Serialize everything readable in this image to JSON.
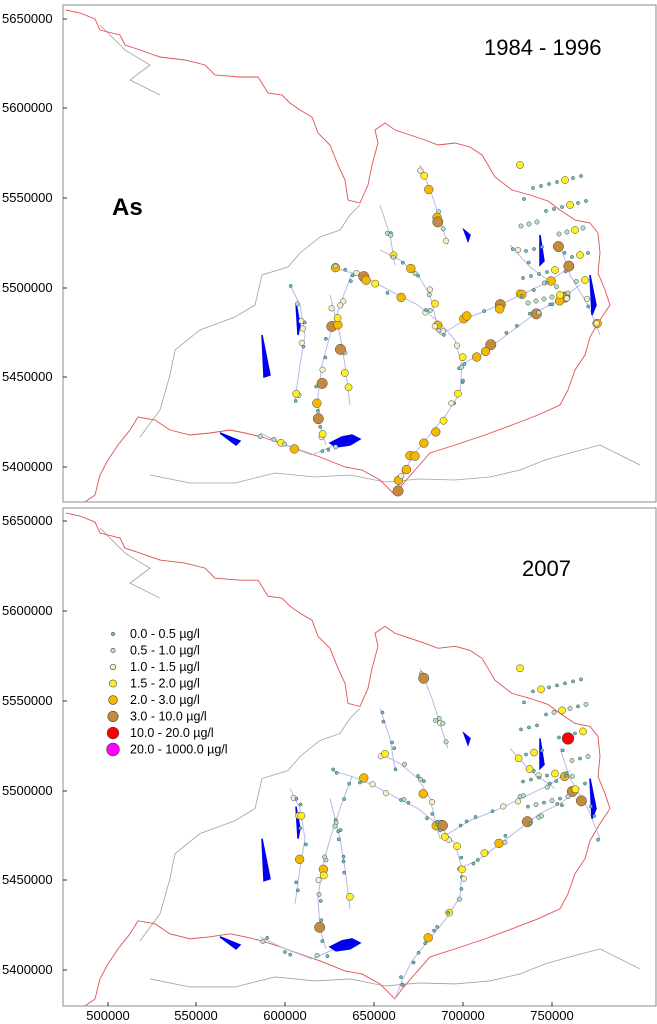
{
  "element_label": "As",
  "panels": [
    {
      "period": "1984 - 1996"
    },
    {
      "period": "2007"
    }
  ],
  "y_ticks": [
    "5650000",
    "5600000",
    "5550000",
    "5500000",
    "5450000",
    "5400000"
  ],
  "x_ticks": [
    "500000",
    "550000",
    "600000",
    "650000",
    "700000",
    "750000"
  ],
  "legend": [
    {
      "label": "0.0  -  0.5 µg/l",
      "color": "#5fc8c0",
      "size": 1.6
    },
    {
      "label": "0.5  -  1.0 µg/l",
      "color": "#b5e3c9",
      "size": 2.2
    },
    {
      "label": "1.0  -  1.5 µg/l",
      "color": "#f2f0c4",
      "size": 2.8
    },
    {
      "label": "1.5  -  2.0 µg/l",
      "color": "#ffee22",
      "size": 3.6
    },
    {
      "label": "2.0  -  3.0 µg/l",
      "color": "#f5b800",
      "size": 4.4
    },
    {
      "label": "3.0  -  10.0 µg/l",
      "color": "#c48b3c",
      "size": 5.2
    },
    {
      "label": "10.0  -  20.0 µg/l",
      "color": "#ff0000",
      "size": 5.8
    },
    {
      "label": "20.0  -  1000.0 µg/l",
      "color": "#ff00ff",
      "size": 6.4
    }
  ],
  "colors": {
    "border": "#e05050",
    "outline": "#a0a0a0",
    "river": "#b8b8e8",
    "lake": "#0000ee",
    "frame": "#8c8c8c"
  }
}
